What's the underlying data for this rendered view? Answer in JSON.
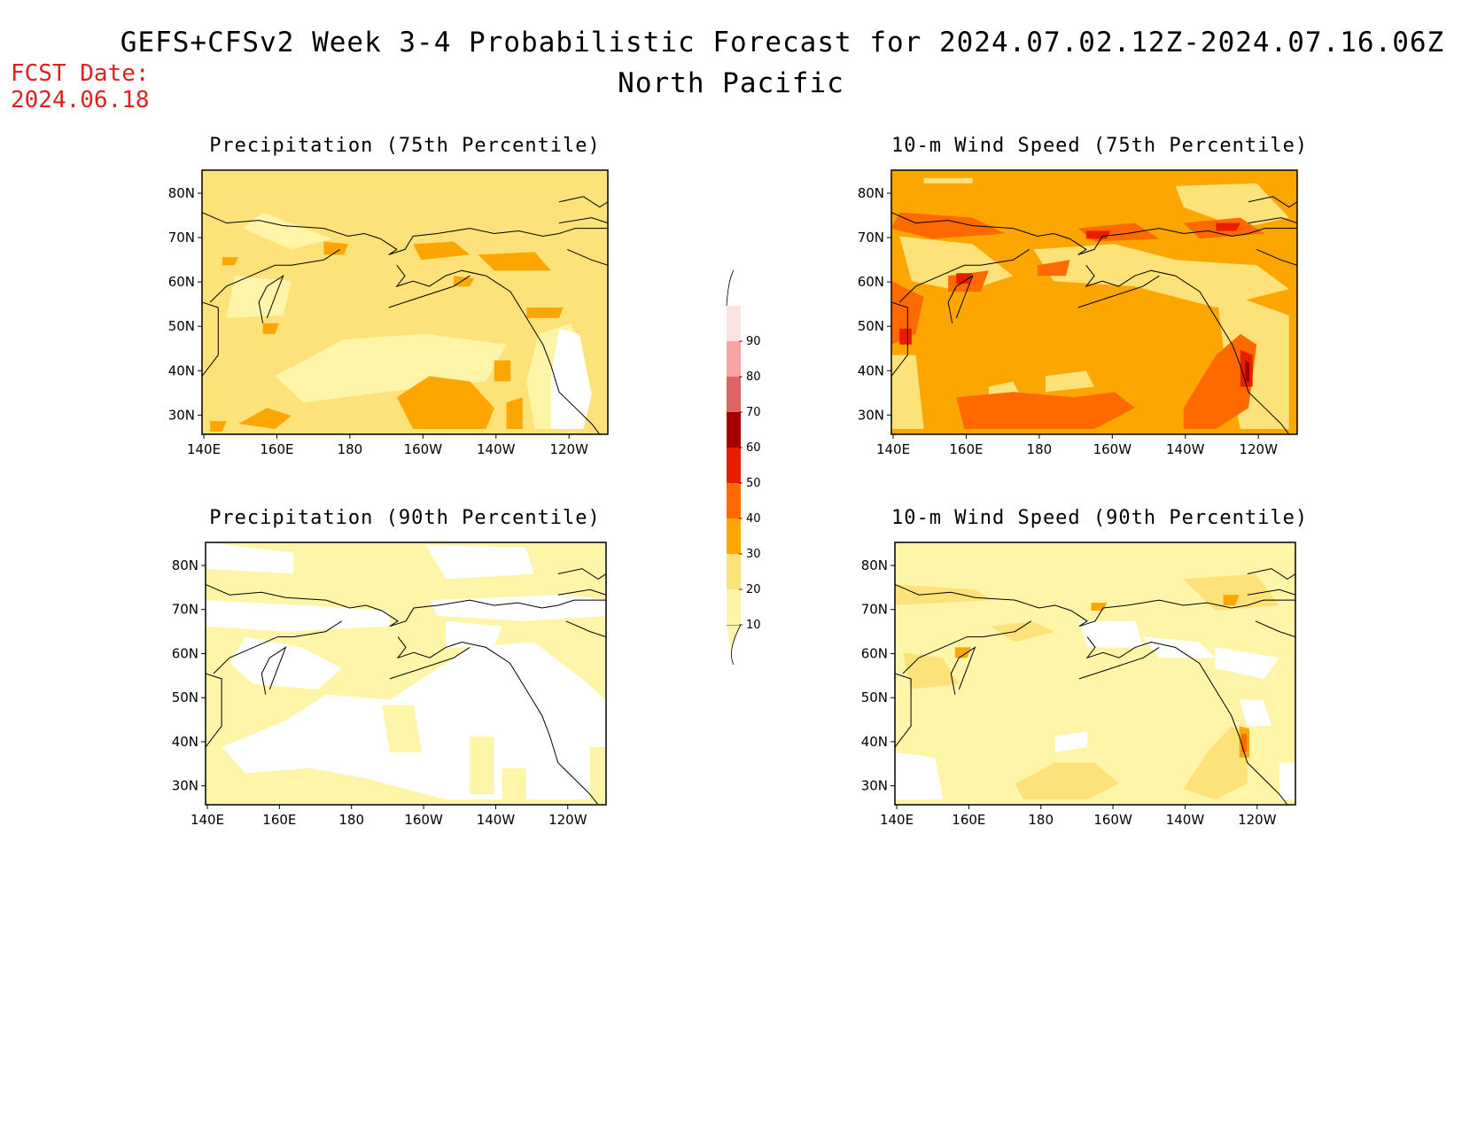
{
  "header": {
    "title": "GEFS+CFSv2 Week 3-4 Probabilistic Forecast for 2024.07.02.12Z-2024.07.16.06Z",
    "subtitle": "North Pacific",
    "fcst_label": "FCST Date:",
    "fcst_date": "2024.06.18"
  },
  "map_axes": {
    "x_ticks": [
      "140E",
      "160E",
      "180",
      "160W",
      "140W",
      "120W"
    ],
    "y_ticks": [
      "80N",
      "70N",
      "60N",
      "50N",
      "40N",
      "30N"
    ]
  },
  "panels": [
    {
      "title": "Precipitation (75th Percentile)",
      "dominant_bin": 20,
      "scheme": "precip75"
    },
    {
      "title": "10-m Wind Speed (75th Percentile)",
      "dominant_bin": 30,
      "scheme": "wind75"
    },
    {
      "title": "Precipitation (90th Percentile)",
      "dominant_bin": 10,
      "scheme": "precip90"
    },
    {
      "title": "10-m Wind Speed (90th Percentile)",
      "dominant_bin": 10,
      "scheme": "wind90"
    }
  ],
  "colorbar": {
    "levels": [
      "10",
      "20",
      "30",
      "40",
      "50",
      "60",
      "70",
      "80",
      "90"
    ],
    "colors": [
      "#fff5a8",
      "#fde27a",
      "#fda600",
      "#ff6a00",
      "#e81c00",
      "#a70000",
      "#dd6464",
      "#f7a4a4",
      "#fde2e2"
    ]
  },
  "palette": {
    "white": "#ffffff",
    "bin10": "#fff5a8",
    "bin20": "#fde27a",
    "bin30": "#fda600",
    "bin40": "#ff6a00",
    "bin50": "#e81c00",
    "bin60": "#a70000"
  }
}
